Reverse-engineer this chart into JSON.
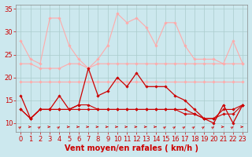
{
  "x": [
    0,
    1,
    2,
    3,
    4,
    5,
    6,
    7,
    8,
    9,
    10,
    11,
    12,
    13,
    14,
    15,
    16,
    17,
    18,
    19,
    20,
    21,
    22,
    23
  ],
  "series": [
    {
      "name": "rafales_max",
      "color": "#ffaaaa",
      "linewidth": 0.8,
      "marker": "D",
      "markersize": 1.8,
      "values": [
        28,
        24,
        23,
        33,
        33,
        27,
        24,
        22,
        24,
        27,
        34,
        32,
        33,
        31,
        27,
        32,
        32,
        27,
        24,
        24,
        24,
        23,
        28,
        23
      ]
    },
    {
      "name": "vent_moyen_max",
      "color": "#ffaaaa",
      "linewidth": 0.8,
      "marker": "D",
      "markersize": 1.8,
      "values": [
        23,
        23,
        22,
        22,
        22,
        23,
        23,
        22,
        23,
        23,
        23,
        23,
        23,
        23,
        23,
        23,
        23,
        23,
        23,
        23,
        23,
        23,
        23,
        23
      ]
    },
    {
      "name": "vent_moyen",
      "color": "#ffaaaa",
      "linewidth": 0.8,
      "marker": "D",
      "markersize": 1.8,
      "values": [
        19,
        19,
        19,
        19,
        19,
        19,
        19,
        19,
        19,
        19,
        19,
        19,
        19,
        19,
        19,
        19,
        19,
        19,
        19,
        19,
        19,
        19,
        19,
        19
      ]
    },
    {
      "name": "rafales",
      "color": "#cc0000",
      "linewidth": 0.9,
      "marker": "D",
      "markersize": 1.8,
      "values": [
        16,
        11,
        13,
        13,
        16,
        13,
        14,
        22,
        16,
        17,
        20,
        18,
        21,
        18,
        18,
        18,
        16,
        15,
        13,
        11,
        10,
        14,
        10,
        14
      ]
    },
    {
      "name": "vent_obs",
      "color": "#cc0000",
      "linewidth": 0.8,
      "marker": "D",
      "markersize": 1.8,
      "values": [
        13,
        11,
        13,
        13,
        13,
        13,
        14,
        14,
        13,
        13,
        13,
        13,
        13,
        13,
        13,
        13,
        13,
        13,
        12,
        11,
        11,
        13,
        13,
        14
      ]
    },
    {
      "name": "vent_min",
      "color": "#cc0000",
      "linewidth": 0.8,
      "marker": "D",
      "markersize": 1.8,
      "values": [
        13,
        11,
        13,
        13,
        13,
        13,
        13,
        13,
        13,
        13,
        13,
        13,
        13,
        13,
        13,
        13,
        13,
        12,
        12,
        11,
        11,
        12,
        12,
        14
      ]
    }
  ],
  "arrow_directions": [
    1,
    0,
    1,
    0,
    1,
    0,
    0,
    0,
    0,
    0,
    0,
    0,
    0,
    0,
    0,
    1,
    1,
    1,
    1,
    1,
    1,
    0,
    1,
    0
  ],
  "xlabel": "Vent moyen/en rafales ( km/h )",
  "xlim_min": -0.5,
  "xlim_max": 23.5,
  "ylim_min": 8,
  "ylim_max": 36,
  "yticks": [
    10,
    15,
    20,
    25,
    30,
    35
  ],
  "xticks": [
    0,
    1,
    2,
    3,
    4,
    5,
    6,
    7,
    8,
    9,
    10,
    11,
    12,
    13,
    14,
    15,
    16,
    17,
    18,
    19,
    20,
    21,
    22,
    23
  ],
  "background_color": "#cce8ee",
  "grid_color": "#aacccc",
  "xlabel_color": "#cc0000",
  "xlabel_fontsize": 7,
  "tick_fontsize": 6,
  "arrow_color": "#cc0000"
}
